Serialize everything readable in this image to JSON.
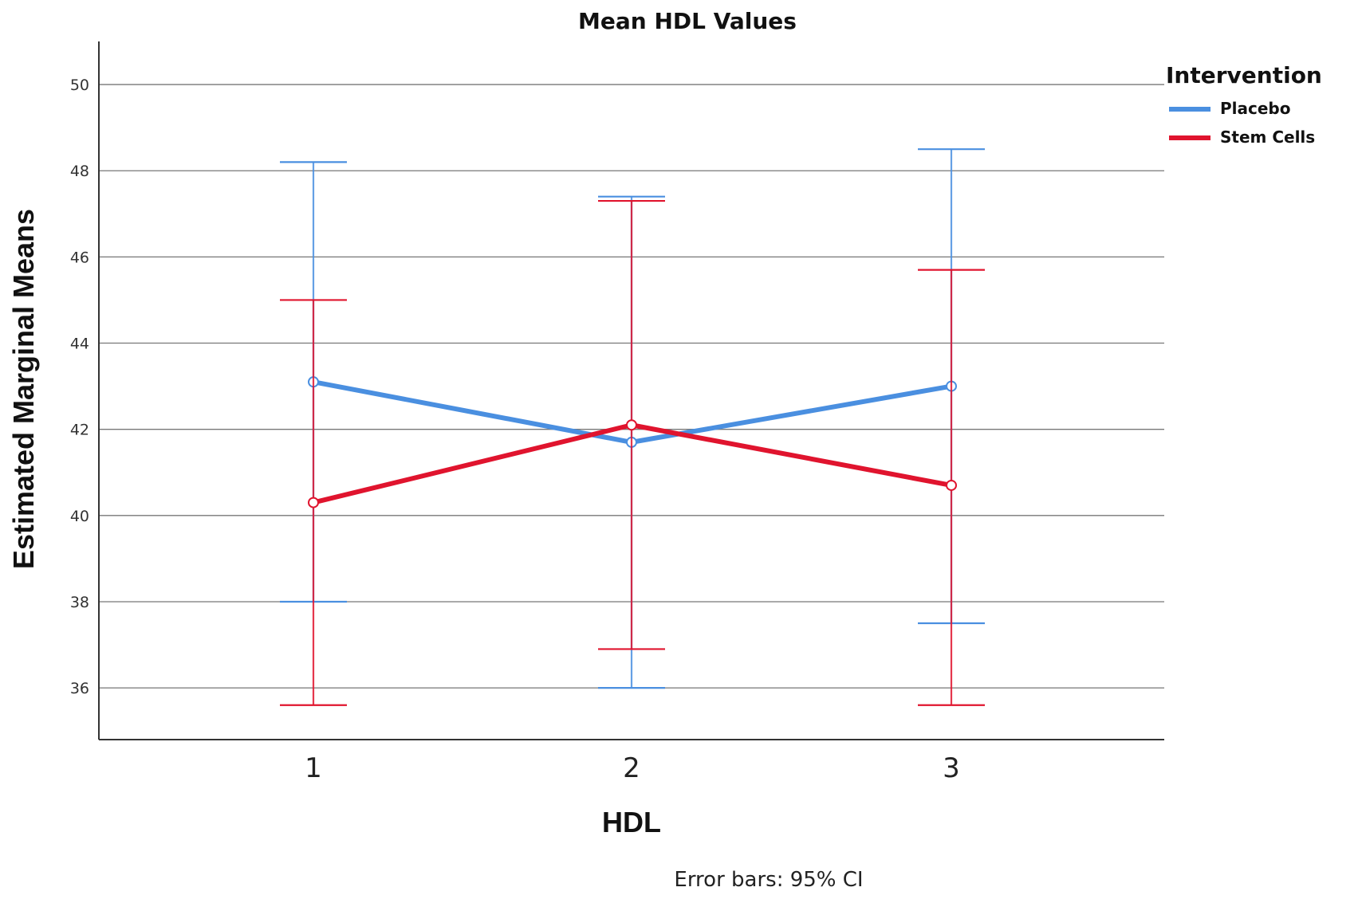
{
  "colors": {
    "placebo": "#4a8fe0",
    "stem_cells": "#e0142e",
    "grid": "#777777",
    "axis": "#333333"
  },
  "chart_data": {
    "type": "line",
    "title": "Mean HDL Values",
    "xlabel": "HDL",
    "ylabel": "Estimated Marginal Means",
    "categories": [
      "1",
      "2",
      "3"
    ],
    "ylim": [
      34.8,
      51
    ],
    "yticks": [
      "50",
      "48",
      "46",
      "44",
      "42",
      "40",
      "38",
      "36"
    ],
    "ytick_values": [
      50,
      48,
      46,
      44,
      42,
      40,
      38,
      36
    ],
    "grid": true,
    "legend": {
      "title": "Intervention",
      "position": "top-right"
    },
    "series": [
      {
        "name": "Placebo",
        "color": "#4a8fe0",
        "values": [
          43.1,
          41.7,
          43.0
        ],
        "ci_low": [
          38.0,
          36.0,
          37.5
        ],
        "ci_high": [
          48.2,
          47.4,
          48.5
        ]
      },
      {
        "name": "Stem Cells",
        "color": "#e0142e",
        "values": [
          40.3,
          42.1,
          40.7
        ],
        "ci_low": [
          35.6,
          36.9,
          35.6
        ],
        "ci_high": [
          45.0,
          47.3,
          45.7
        ]
      }
    ],
    "footnote": "Error bars: 95% CI"
  }
}
